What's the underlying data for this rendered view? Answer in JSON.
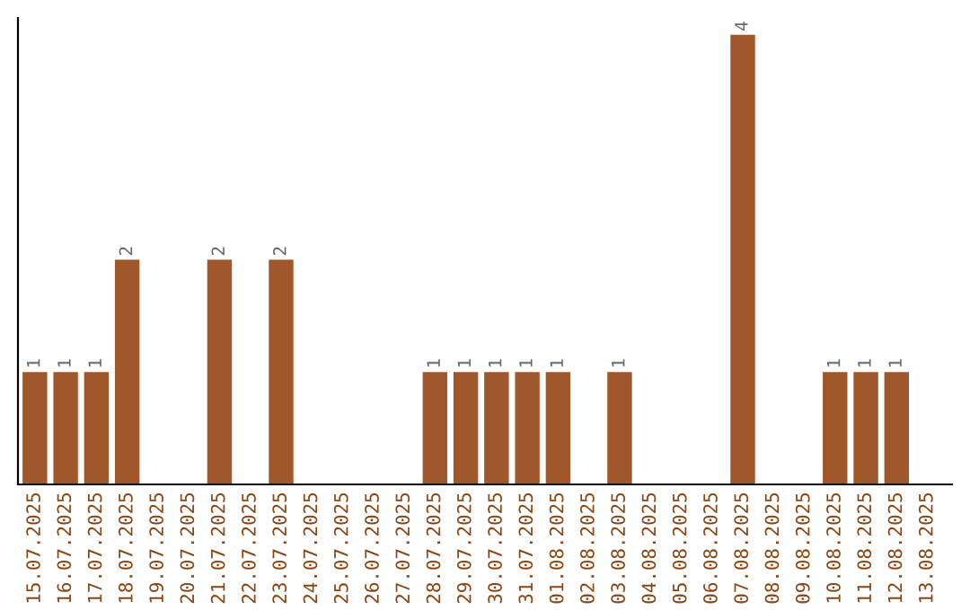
{
  "chart_data": {
    "type": "bar",
    "categories": [
      "15.07.2025",
      "16.07.2025",
      "17.07.2025",
      "18.07.2025",
      "19.07.2025",
      "20.07.2025",
      "21.07.2025",
      "22.07.2025",
      "23.07.2025",
      "24.07.2025",
      "25.07.2025",
      "26.07.2025",
      "27.07.2025",
      "28.07.2025",
      "29.07.2025",
      "30.07.2025",
      "31.07.2025",
      "01.08.2025",
      "02.08.2025",
      "03.08.2025",
      "04.08.2025",
      "05.08.2025",
      "06.08.2025",
      "07.08.2025",
      "08.08.2025",
      "09.08.2025",
      "10.08.2025",
      "11.08.2025",
      "12.08.2025",
      "13.08.2025"
    ],
    "values": [
      1,
      1,
      1,
      2,
      0,
      0,
      2,
      0,
      2,
      0,
      0,
      0,
      0,
      1,
      1,
      1,
      1,
      1,
      0,
      1,
      0,
      0,
      0,
      4,
      0,
      0,
      1,
      1,
      1,
      0
    ],
    "value_labels": [
      "1",
      "1",
      "1",
      "2",
      null,
      null,
      "2",
      null,
      "2",
      null,
      null,
      null,
      null,
      "1",
      "1",
      "1",
      "1",
      "1",
      null,
      "1",
      null,
      null,
      null,
      "4",
      null,
      null,
      "1",
      "1",
      "1",
      null
    ],
    "color": "#a0572a",
    "ylim": [
      0,
      4.15
    ],
    "tick_labels": "x",
    "grid": false,
    "legend": false
  }
}
